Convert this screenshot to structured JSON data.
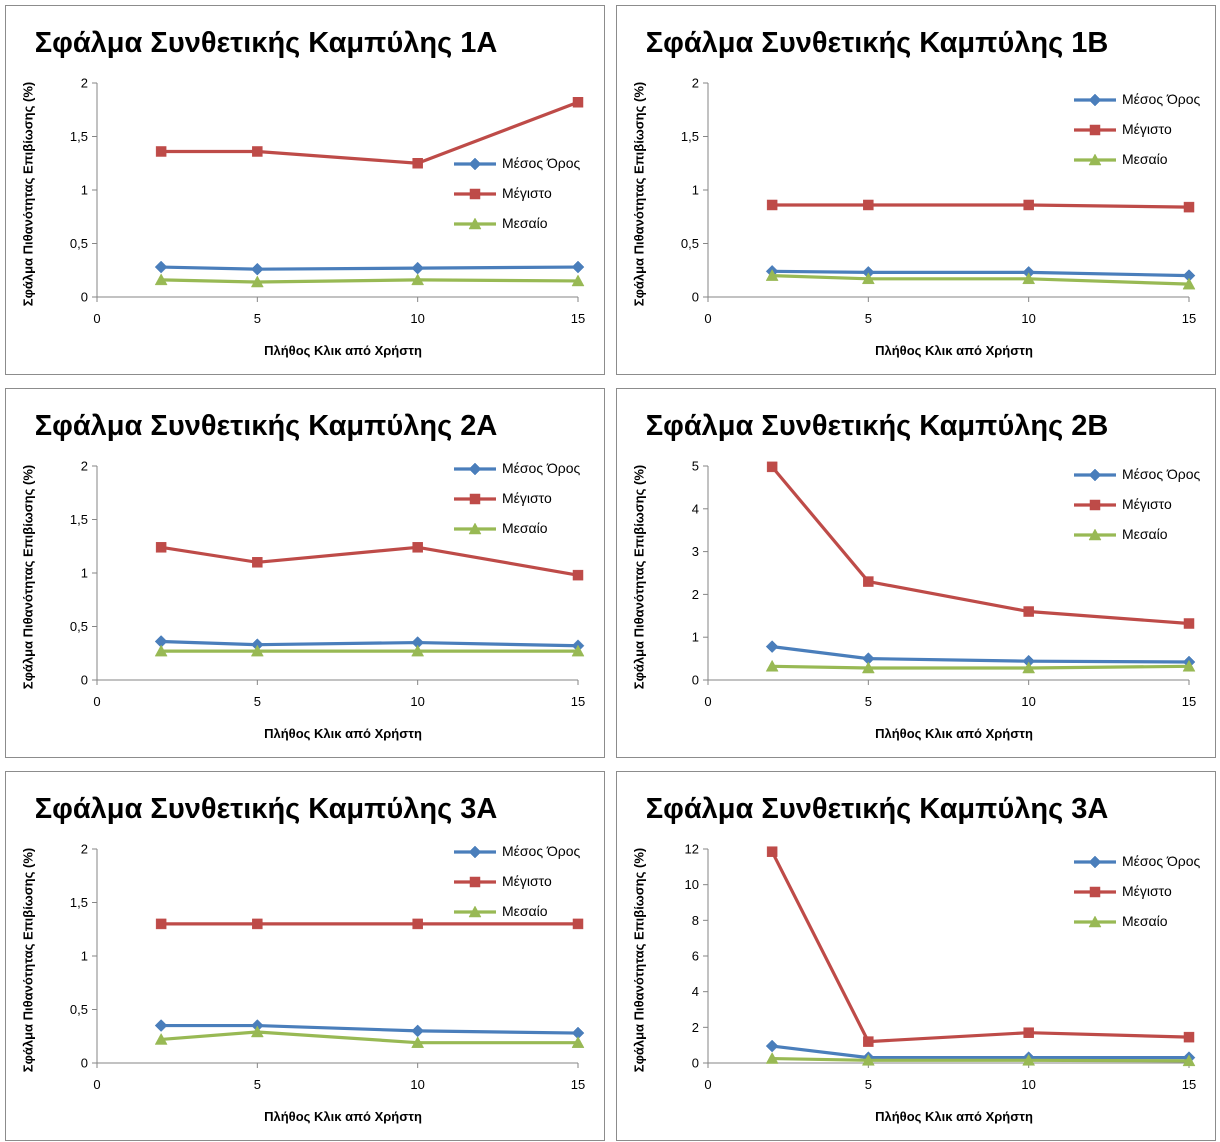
{
  "legend_labels": [
    "Μέσος Όρος",
    "Μέγιστο",
    "Μεσαίο"
  ],
  "colors": {
    "mean": "#4a7ebb",
    "max": "#be4b48",
    "median": "#98b954",
    "axis": "#868686"
  },
  "chart_data": [
    {
      "type": "line",
      "title": "Σφάλμα Συνθετικής Καμπύλης 1Α",
      "xlabel": "Πλήθος Κλικ από Χρήστη",
      "ylabel": "Σφάλμα Πιθανότητας Επιβίωσης (%)",
      "x": [
        2,
        5,
        10,
        15
      ],
      "xlim": [
        0,
        15
      ],
      "xticks": [
        "0",
        "5",
        "10",
        "15"
      ],
      "ylim": [
        0,
        2
      ],
      "yticks": [
        "0",
        "0,5",
        "1",
        "1,5",
        "2"
      ],
      "legend_position": "right",
      "series": [
        {
          "name": "Μέσος Όρος",
          "marker": "diamond",
          "values": [
            0.28,
            0.26,
            0.27,
            0.28
          ]
        },
        {
          "name": "Μέγιστο",
          "marker": "square",
          "values": [
            1.36,
            1.36,
            1.25,
            1.82
          ]
        },
        {
          "name": "Μεσαίο",
          "marker": "triangle",
          "values": [
            0.16,
            0.14,
            0.16,
            0.15
          ]
        }
      ]
    },
    {
      "type": "line",
      "title": "Σφάλμα Συνθετικής Καμπύλης 1Β",
      "xlabel": "Πλήθος Κλικ από Χρήστη",
      "ylabel": "Σφάλμα Πιθανότητας Επιβίωσης (%)",
      "x": [
        2,
        5,
        10,
        15
      ],
      "xlim": [
        0,
        15
      ],
      "xticks": [
        "0",
        "5",
        "10",
        "15"
      ],
      "ylim": [
        0,
        2
      ],
      "yticks": [
        "0",
        "0,5",
        "1",
        "1,5",
        "2"
      ],
      "legend_position": "top-right",
      "series": [
        {
          "name": "Μέσος Όρος",
          "marker": "diamond",
          "values": [
            0.24,
            0.23,
            0.23,
            0.2
          ]
        },
        {
          "name": "Μέγιστο",
          "marker": "square",
          "values": [
            0.86,
            0.86,
            0.86,
            0.84
          ]
        },
        {
          "name": "Μεσαίο",
          "marker": "triangle",
          "values": [
            0.2,
            0.17,
            0.17,
            0.12
          ]
        }
      ]
    },
    {
      "type": "line",
      "title": "Σφάλμα Συνθετικής Καμπύλης 2Α",
      "xlabel": "Πλήθος Κλικ από Χρήστη",
      "ylabel": "Σφάλμα Πιθανότητας Επιβίωσης (%)",
      "x": [
        2,
        5,
        10,
        15
      ],
      "xlim": [
        0,
        15
      ],
      "xticks": [
        "0",
        "5",
        "10",
        "15"
      ],
      "ylim": [
        0,
        2
      ],
      "yticks": [
        "0",
        "0,5",
        "1",
        "1,5",
        "2"
      ],
      "legend_position": "top-right",
      "series": [
        {
          "name": "Μέσος Όρος",
          "marker": "diamond",
          "values": [
            0.36,
            0.33,
            0.35,
            0.32
          ]
        },
        {
          "name": "Μέγιστο",
          "marker": "square",
          "values": [
            1.24,
            1.1,
            1.24,
            0.98
          ]
        },
        {
          "name": "Μεσαίο",
          "marker": "triangle",
          "values": [
            0.27,
            0.27,
            0.27,
            0.27
          ]
        }
      ]
    },
    {
      "type": "line",
      "title": "Σφάλμα Συνθετικής Καμπύλης 2Β",
      "xlabel": "Πλήθος Κλικ από Χρήστη",
      "ylabel": "Σφάλμα Πιθανότητας Επιβίωσης (%)",
      "x": [
        2,
        5,
        10,
        15
      ],
      "xlim": [
        0,
        15
      ],
      "xticks": [
        "0",
        "5",
        "10",
        "15"
      ],
      "ylim": [
        0,
        5
      ],
      "yticks": [
        "0",
        "1",
        "2",
        "3",
        "4",
        "5"
      ],
      "legend_position": "top-right",
      "series": [
        {
          "name": "Μέσος Όρος",
          "marker": "diamond",
          "values": [
            0.78,
            0.5,
            0.44,
            0.42
          ]
        },
        {
          "name": "Μέγιστο",
          "marker": "square",
          "values": [
            4.98,
            2.3,
            1.6,
            1.32
          ]
        },
        {
          "name": "Μεσαίο",
          "marker": "triangle",
          "values": [
            0.32,
            0.28,
            0.28,
            0.32
          ]
        }
      ]
    },
    {
      "type": "line",
      "title": "Σφάλμα Συνθετικής Καμπύλης 3Α",
      "xlabel": "Πλήθος Κλικ από Χρήστη",
      "ylabel": "Σφάλμα Πιθανότητας Επιβίωσης (%)",
      "x": [
        2,
        5,
        10,
        15
      ],
      "xlim": [
        0,
        15
      ],
      "xticks": [
        "0",
        "5",
        "10",
        "15"
      ],
      "ylim": [
        0,
        2
      ],
      "yticks": [
        "0",
        "0,5",
        "1",
        "1,5",
        "2"
      ],
      "legend_position": "top-right",
      "series": [
        {
          "name": "Μέσος Όρος",
          "marker": "diamond",
          "values": [
            0.35,
            0.35,
            0.3,
            0.28
          ]
        },
        {
          "name": "Μέγιστο",
          "marker": "square",
          "values": [
            1.3,
            1.3,
            1.3,
            1.3
          ]
        },
        {
          "name": "Μεσαίο",
          "marker": "triangle",
          "values": [
            0.22,
            0.29,
            0.19,
            0.19
          ]
        }
      ]
    },
    {
      "type": "line",
      "title": "Σφάλμα Συνθετικής Καμπύλης 3Α",
      "xlabel": "Πλήθος Κλικ από Χρήστη",
      "ylabel": "Σφάλμα Πιθανότητας Επιβίωσης (%)",
      "x": [
        2,
        5,
        10,
        15
      ],
      "xlim": [
        0,
        15
      ],
      "xticks": [
        "0",
        "5",
        "10",
        "15"
      ],
      "ylim": [
        0,
        12
      ],
      "yticks": [
        "0",
        "2",
        "4",
        "6",
        "8",
        "10",
        "12"
      ],
      "legend_position": "top-right",
      "series": [
        {
          "name": "Μέσος Όρος",
          "marker": "diamond",
          "values": [
            0.95,
            0.3,
            0.3,
            0.3
          ]
        },
        {
          "name": "Μέγιστο",
          "marker": "square",
          "values": [
            11.85,
            1.2,
            1.7,
            1.45
          ]
        },
        {
          "name": "Μεσαίο",
          "marker": "triangle",
          "values": [
            0.25,
            0.15,
            0.15,
            0.12
          ]
        }
      ]
    }
  ]
}
